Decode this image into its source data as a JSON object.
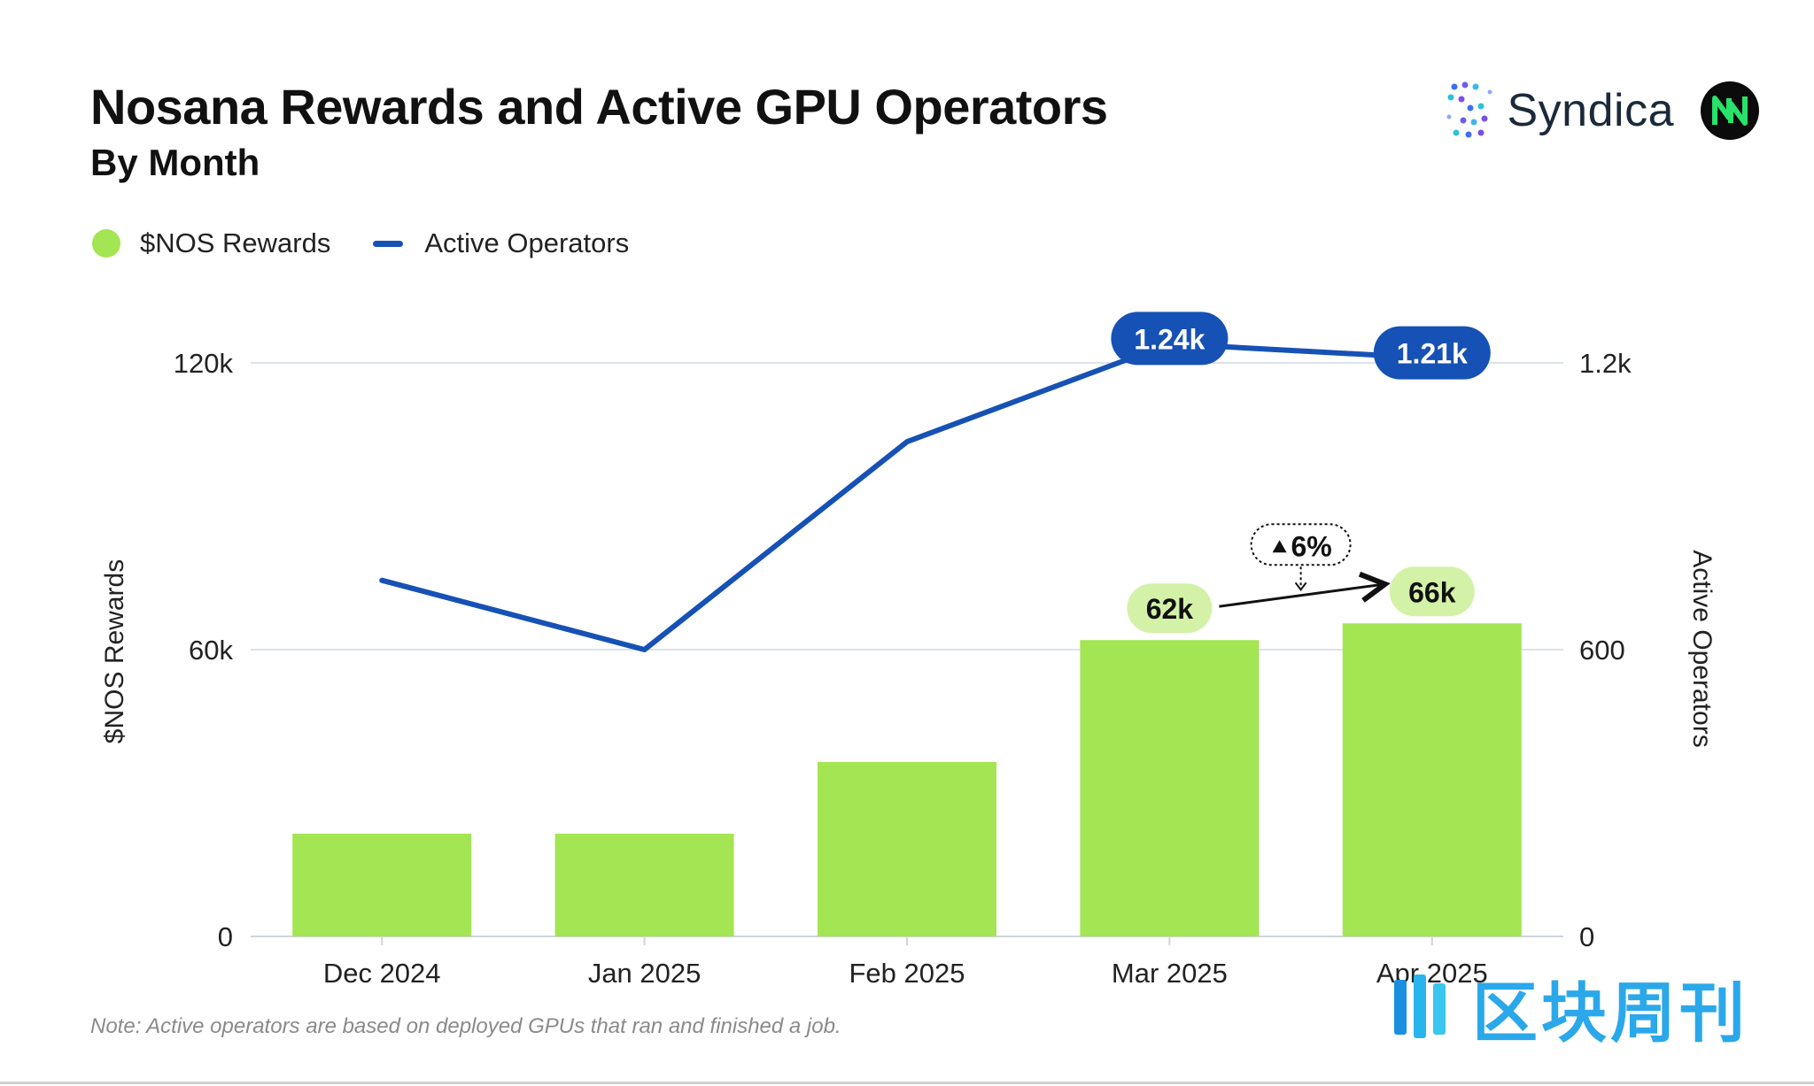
{
  "header": {
    "title": "Nosana Rewards and Active GPU Operators",
    "subtitle": "By Month"
  },
  "brand": {
    "name": "Syndica"
  },
  "legend": {
    "rewards_label": "$NOS Rewards",
    "operators_label": "Active Operators"
  },
  "note": "Note: Active operators are based on deployed GPUs that ran and finished a job.",
  "watermark": {
    "text": "区块周刊"
  },
  "colors": {
    "bar": "#a3e553",
    "bar_label_bg": "#d3f2a8",
    "line": "#1651b5",
    "grid": "#dde3ea",
    "text": "#111111"
  },
  "chart_data": {
    "type": "bar",
    "categories": [
      "Dec 2024",
      "Jan 2025",
      "Feb 2025",
      "Mar 2025",
      "Apr 2025"
    ],
    "series": [
      {
        "name": "$NOS Rewards",
        "type": "bar",
        "axis": "left",
        "values": [
          21500,
          21500,
          36500,
          62000,
          65500
        ]
      },
      {
        "name": "Active Operators",
        "type": "line",
        "axis": "right",
        "values": [
          745,
          600,
          1035,
          1240,
          1210
        ]
      }
    ],
    "ylabel": "$NOS Rewards",
    "ylabel_right": "Active Operators",
    "ylim": [
      0,
      120000
    ],
    "ylim_right": [
      0,
      1200
    ],
    "yticks": [
      {
        "value": 0,
        "label": "0"
      },
      {
        "value": 60000,
        "label": "60k"
      },
      {
        "value": 120000,
        "label": "120k"
      }
    ],
    "yticks_right": [
      {
        "value": 0,
        "label": "0"
      },
      {
        "value": 600,
        "label": "600"
      },
      {
        "value": 1200,
        "label": "1.2k"
      }
    ],
    "bar_labels": [
      {
        "index": 3,
        "text": "62k"
      },
      {
        "index": 4,
        "text": "66k"
      }
    ],
    "line_labels": [
      {
        "index": 3,
        "text": "1.24k"
      },
      {
        "index": 4,
        "text": "1.21k"
      }
    ],
    "change_annotation": {
      "from_index": 3,
      "to_index": 4,
      "text": "6%"
    },
    "grid": true,
    "legend_position": "top-left"
  }
}
